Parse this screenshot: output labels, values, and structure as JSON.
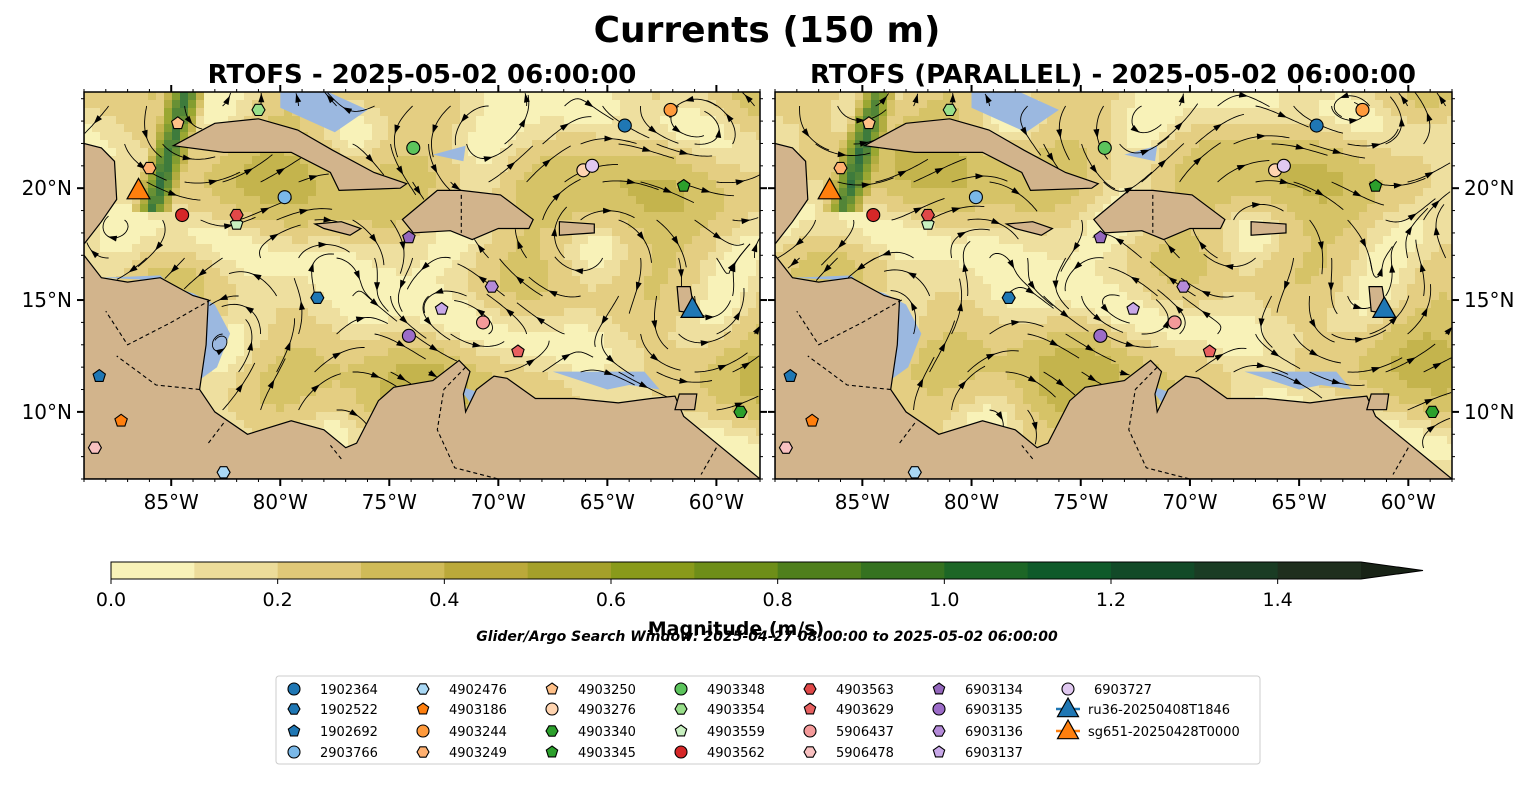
{
  "figure": {
    "title": "Currents (150 m)",
    "search_window": "Glider/Argo Search Window: 2025-04-27 08:00:00 to 2025-05-02 06:00:00"
  },
  "chart_data": {
    "type": "map",
    "colors": {
      "land": "#d2b48c",
      "shallow_water": "#9bb8e0",
      "ocean_low": "#f8f2b8",
      "glider_blue": "#1f77b4",
      "glider_orange": "#ff7f0e"
    },
    "lon_range": [
      -89.0,
      -58.0
    ],
    "lat_range": [
      7.0,
      24.3
    ],
    "xticks": [
      {
        "value": -85,
        "label": "85°W"
      },
      {
        "value": -80,
        "label": "80°W"
      },
      {
        "value": -75,
        "label": "75°W"
      },
      {
        "value": -70,
        "label": "70°W"
      },
      {
        "value": -65,
        "label": "65°W"
      },
      {
        "value": -60,
        "label": "60°W"
      }
    ],
    "yticks": [
      {
        "value": 10,
        "label": "10°N"
      },
      {
        "value": 15,
        "label": "15°N"
      },
      {
        "value": 20,
        "label": "20°N"
      }
    ],
    "panels": [
      {
        "title": "RTOFS - 2025-05-02 06:00:00",
        "ylabels_side": "left"
      },
      {
        "title": "RTOFS (PARALLEL) - 2025-05-02 06:00:00",
        "ylabels_side": "right"
      }
    ],
    "colorbar": {
      "label": "Magnitude (m/s)",
      "range": [
        0.0,
        1.5
      ],
      "extend": "max",
      "levels": [
        0.0,
        0.1,
        0.2,
        0.3,
        0.4,
        0.5,
        0.6,
        0.7,
        0.8,
        0.9,
        1.0,
        1.1,
        1.2,
        1.3,
        1.4,
        1.5
      ],
      "colors": [
        "#f8f2b8",
        "#ecdc9a",
        "#e0c878",
        "#d0bb58",
        "#bba93a",
        "#a4a02a",
        "#899a1a",
        "#6e8e18",
        "#4f7f1c",
        "#357220",
        "#1d6626",
        "#0f5a2a",
        "#124a28",
        "#1a3c24",
        "#1f2f1e"
      ],
      "extend_color": "#182316",
      "ticks": [
        {
          "value": 0.0,
          "label": "0.0"
        },
        {
          "value": 0.2,
          "label": "0.2"
        },
        {
          "value": 0.4,
          "label": "0.4"
        },
        {
          "value": 0.6,
          "label": "0.6"
        },
        {
          "value": 0.8,
          "label": "0.8"
        },
        {
          "value": 1.0,
          "label": "1.0"
        },
        {
          "value": 1.2,
          "label": "1.2"
        },
        {
          "value": 1.4,
          "label": "1.4"
        }
      ]
    },
    "floats": [
      {
        "id": "1902364",
        "marker": "circle",
        "color": "#1f77b4",
        "lon": -64.2,
        "lat": 22.8
      },
      {
        "id": "1902522",
        "marker": "hexagon",
        "color": "#1f77b4",
        "lon": -78.3,
        "lat": 15.1
      },
      {
        "id": "1902692",
        "marker": "pentagon",
        "color": "#1f77b4",
        "lon": -88.3,
        "lat": 11.6
      },
      {
        "id": "2903766",
        "marker": "circle",
        "color": "#7ab8e8",
        "lon": -79.8,
        "lat": 19.6
      },
      {
        "id": "4902476",
        "marker": "hexagon",
        "color": "#a9d8f5",
        "lon": -82.6,
        "lat": 7.3
      },
      {
        "id": "4903186",
        "marker": "pentagon",
        "color": "#ff7f0e",
        "lon": -87.3,
        "lat": 9.6
      },
      {
        "id": "4903244",
        "marker": "circle",
        "color": "#ff9a3c",
        "lon": -62.1,
        "lat": 23.5
      },
      {
        "id": "4903249",
        "marker": "hexagon",
        "color": "#ffb070",
        "lon": -86.0,
        "lat": 20.9
      },
      {
        "id": "4903250",
        "marker": "pentagon",
        "color": "#ffc088",
        "lon": -84.7,
        "lat": 22.9
      },
      {
        "id": "4903276",
        "marker": "circle",
        "color": "#ffd4b0",
        "lon": -66.1,
        "lat": 20.8
      },
      {
        "id": "4903340",
        "marker": "hexagon",
        "color": "#2ca02c",
        "lon": -58.9,
        "lat": 10.0
      },
      {
        "id": "4903345",
        "marker": "pentagon",
        "color": "#2ca02c",
        "lon": -61.5,
        "lat": 20.1
      },
      {
        "id": "4903348",
        "marker": "circle",
        "color": "#5cc45c",
        "lon": -73.9,
        "lat": 21.8
      },
      {
        "id": "4903354",
        "marker": "hexagon",
        "color": "#98df8a",
        "lon": -81.0,
        "lat": 23.5
      },
      {
        "id": "4903559",
        "marker": "pentagon",
        "color": "#c8f0c0",
        "lon": -82.0,
        "lat": 18.4
      },
      {
        "id": "4903562",
        "marker": "circle",
        "color": "#d62728",
        "lon": -84.5,
        "lat": 18.8
      },
      {
        "id": "4903563",
        "marker": "hexagon",
        "color": "#e04848",
        "lon": -82.0,
        "lat": 18.8
      },
      {
        "id": "4903629",
        "marker": "pentagon",
        "color": "#e86060",
        "lon": -69.1,
        "lat": 12.7
      },
      {
        "id": "5906437",
        "marker": "circle",
        "color": "#f49a9a",
        "lon": -70.7,
        "lat": 14.0
      },
      {
        "id": "5906478",
        "marker": "hexagon",
        "color": "#f8c0c0",
        "lon": -88.5,
        "lat": 8.4
      },
      {
        "id": "6903134",
        "marker": "pentagon",
        "color": "#9467bd",
        "lon": -74.1,
        "lat": 17.8
      },
      {
        "id": "6903135",
        "marker": "circle",
        "color": "#9c6cc8",
        "lon": -74.1,
        "lat": 13.4
      },
      {
        "id": "6903136",
        "marker": "hexagon",
        "color": "#b48ad8",
        "lon": -70.3,
        "lat": 15.6
      },
      {
        "id": "6903137",
        "marker": "pentagon",
        "color": "#c8a8e8",
        "lon": -72.6,
        "lat": 14.6
      },
      {
        "id": "6903727",
        "marker": "circle",
        "color": "#e0c8f0",
        "lon": -65.7,
        "lat": 21.0
      }
    ],
    "gliders": [
      {
        "id": "ru36-20250408T1846",
        "color": "#1f77b4",
        "lon": -61.1,
        "lat": 14.6
      },
      {
        "id": "sg651-20250428T0000",
        "color": "#ff7f0e",
        "lon": -86.5,
        "lat": 19.9
      }
    ]
  }
}
